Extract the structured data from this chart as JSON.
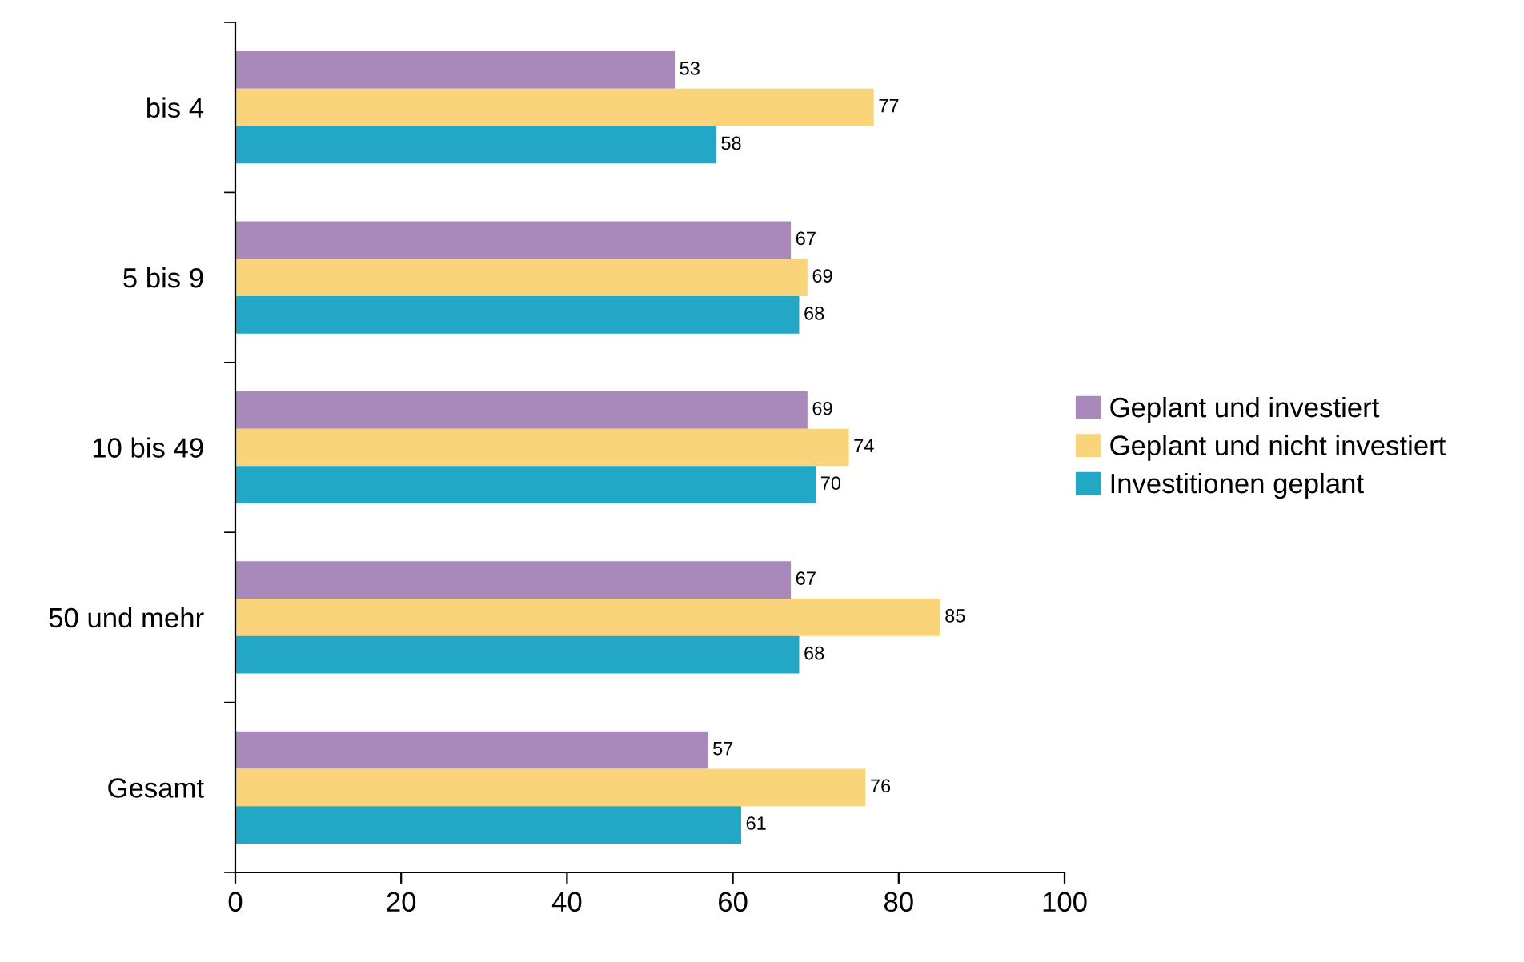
{
  "chart_data": {
    "type": "bar",
    "orientation": "horizontal",
    "categories": [
      "bis 4",
      "5 bis 9",
      "10 bis 49",
      "50 und mehr",
      "Gesamt"
    ],
    "series": [
      {
        "name": "Geplant und investiert",
        "color": "#a988bb",
        "values": [
          53,
          67,
          69,
          67,
          57
        ]
      },
      {
        "name": "Geplant und nicht investiert",
        "color": "#fad47a",
        "values": [
          77,
          69,
          74,
          85,
          76
        ]
      },
      {
        "name": "Investitionen geplant",
        "color": "#22a7c6",
        "values": [
          58,
          68,
          70,
          68,
          61
        ]
      }
    ],
    "xlim": [
      0,
      100
    ],
    "xticks": [
      0,
      20,
      40,
      60,
      80,
      100
    ],
    "data_labels": true,
    "grid": false,
    "legend": "right"
  }
}
